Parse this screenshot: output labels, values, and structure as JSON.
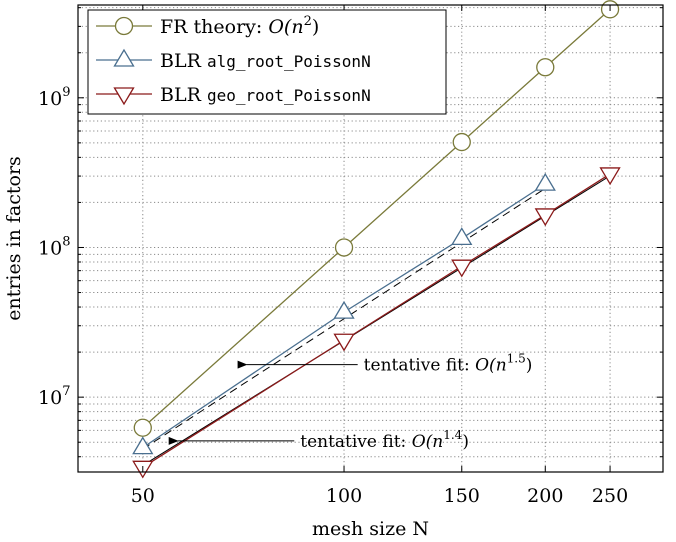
{
  "chart_data": {
    "type": "line",
    "xlabel": "mesh size N",
    "ylabel": "entries in factors",
    "x_scale": "log",
    "y_scale": "log",
    "xlim": [
      40,
      300
    ],
    "ylim_exponents": [
      6.5,
      9.62
    ],
    "x_ticks": [
      50,
      100,
      150,
      200,
      250
    ],
    "x_tick_labels": [
      "50",
      "100",
      "150",
      "200",
      "250"
    ],
    "y_ticks": [
      10000000,
      100000000,
      1000000000
    ],
    "y_tick_labels": [
      {
        "base": "10",
        "exp": "7"
      },
      {
        "base": "10",
        "exp": "8"
      },
      {
        "base": "10",
        "exp": "9"
      }
    ],
    "grid": true,
    "legend_placement": "top-left",
    "series": [
      {
        "name": "FR theory: O(n²)",
        "legend": {
          "prefix": "FR theory: ",
          "math": "O(n",
          "sup": "2",
          "close": ")",
          "code": ""
        },
        "marker": "circle",
        "color": "#7a7a3a",
        "x": [
          50,
          100,
          150,
          200,
          250
        ],
        "y": [
          6250000,
          100000000,
          506000000,
          1600000000,
          3900000000
        ]
      },
      {
        "name": "BLR alg_root_PoissonN",
        "legend": {
          "prefix": "BLR ",
          "math": "",
          "sup": "",
          "close": "",
          "code": "alg_root_PoissonN"
        },
        "marker": "triangle-up",
        "color": "#4a6f8f",
        "x": [
          50,
          100,
          150,
          200
        ],
        "y": [
          4600000,
          37000000,
          115000000,
          265000000
        ]
      },
      {
        "name": "BLR geo_root_PoissonN",
        "legend": {
          "prefix": "BLR ",
          "math": "",
          "sup": "",
          "close": "",
          "code": "geo_root_PoissonN"
        },
        "marker": "triangle-down",
        "color": "#8b1a1a",
        "x": [
          50,
          100,
          150,
          200,
          250
        ],
        "y": [
          3400000,
          24000000,
          75000000,
          165000000,
          310000000
        ]
      }
    ],
    "fits": [
      {
        "style": "dashed",
        "x": [
          50,
          200
        ],
        "y": [
          4500000,
          248000000
        ]
      },
      {
        "style": "solid",
        "x": [
          50,
          250
        ],
        "y": [
          3500000,
          301000000
        ]
      }
    ],
    "annotations": [
      {
        "text": "tentative fit: ",
        "math": "O(n",
        "sup": "1.5",
        "close": ")",
        "arrow_to": {
          "x": 71,
          "y": 16500000
        },
        "text_at": {
          "x": 107,
          "y": 16500000
        }
      },
      {
        "text": "tentative fit: ",
        "math": "O(n",
        "sup": "1.4",
        "close": ")",
        "arrow_to": {
          "x": 56,
          "y": 5100000
        },
        "text_at": {
          "x": 86,
          "y": 5100000
        }
      }
    ]
  }
}
